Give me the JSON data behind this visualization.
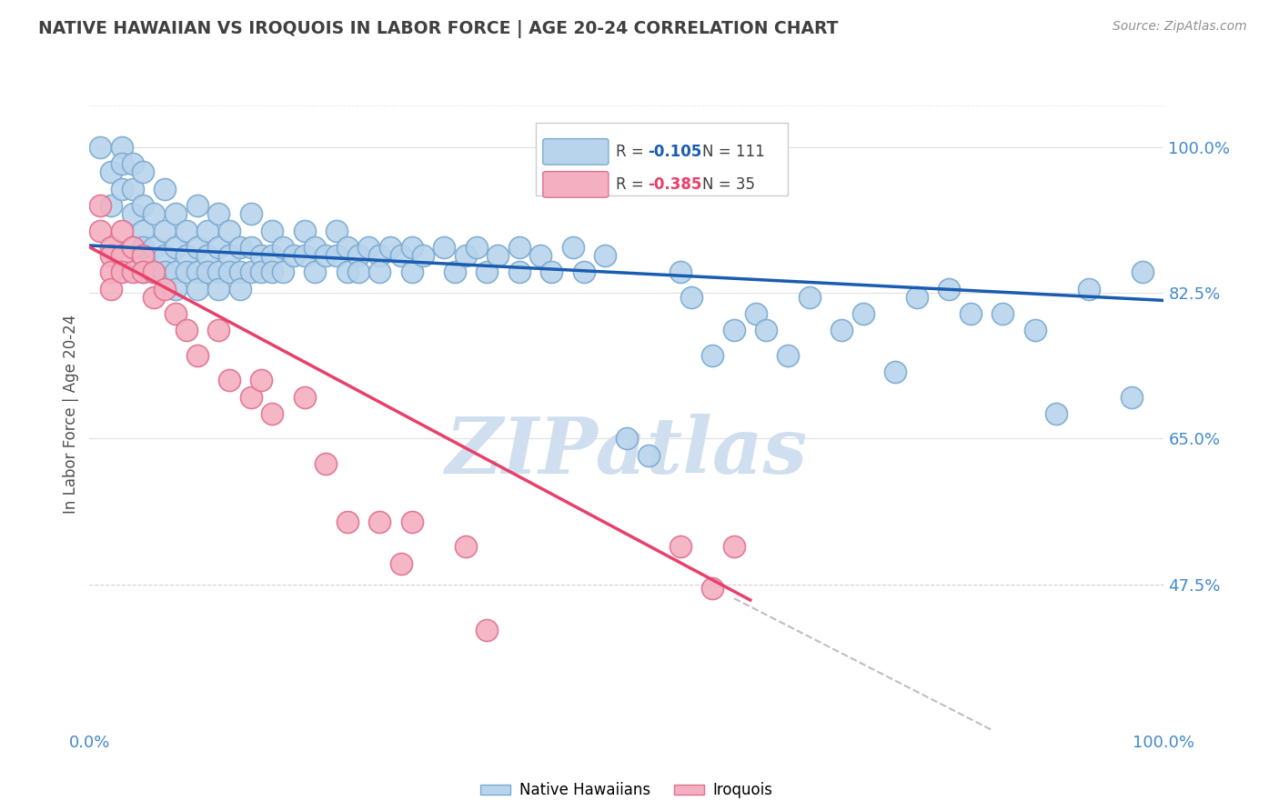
{
  "title": "NATIVE HAWAIIAN VS IROQUOIS IN LABOR FORCE | AGE 20-24 CORRELATION CHART",
  "source_text": "Source: ZipAtlas.com",
  "ylabel": "In Labor Force | Age 20-24",
  "xlim": [
    0.0,
    1.0
  ],
  "ylim": [
    0.3,
    1.06
  ],
  "ytick_labels": [
    "100.0%",
    "82.5%",
    "65.0%",
    "47.5%"
  ],
  "ytick_values": [
    1.0,
    0.825,
    0.65,
    0.475
  ],
  "ytick_dashed": [
    0.475
  ],
  "legend_r1": "-0.105",
  "legend_n1": "111",
  "legend_r2": "-0.385",
  "legend_n2": "35",
  "color_blue": "#b8d4ec",
  "color_pink": "#f4afc0",
  "edge_blue": "#7aaad0",
  "edge_pink": "#e07090",
  "line_blue": "#1a5cb0",
  "line_pink": "#e8406a",
  "line_dashed_color": "#c8b8c8",
  "watermark": "ZIPatlas",
  "watermark_color": "#d0dff0",
  "background_color": "#ffffff",
  "grid_color": "#e0e0e0",
  "grid_dashed_color": "#e0c8d0",
  "title_color": "#404040",
  "source_color": "#909090",
  "ylabel_color": "#505050",
  "ytick_color": "#4488cc",
  "xtick_color": "#4488cc",
  "blue_points": [
    [
      0.01,
      1.0
    ],
    [
      0.02,
      0.97
    ],
    [
      0.02,
      0.93
    ],
    [
      0.03,
      1.0
    ],
    [
      0.03,
      0.98
    ],
    [
      0.03,
      0.95
    ],
    [
      0.04,
      0.98
    ],
    [
      0.04,
      0.95
    ],
    [
      0.04,
      0.92
    ],
    [
      0.05,
      0.97
    ],
    [
      0.05,
      0.93
    ],
    [
      0.05,
      0.9
    ],
    [
      0.05,
      0.88
    ],
    [
      0.05,
      0.85
    ],
    [
      0.06,
      0.92
    ],
    [
      0.06,
      0.88
    ],
    [
      0.06,
      0.85
    ],
    [
      0.07,
      0.95
    ],
    [
      0.07,
      0.9
    ],
    [
      0.07,
      0.87
    ],
    [
      0.07,
      0.85
    ],
    [
      0.08,
      0.92
    ],
    [
      0.08,
      0.88
    ],
    [
      0.08,
      0.85
    ],
    [
      0.08,
      0.83
    ],
    [
      0.09,
      0.9
    ],
    [
      0.09,
      0.87
    ],
    [
      0.09,
      0.85
    ],
    [
      0.1,
      0.93
    ],
    [
      0.1,
      0.88
    ],
    [
      0.1,
      0.85
    ],
    [
      0.1,
      0.83
    ],
    [
      0.11,
      0.9
    ],
    [
      0.11,
      0.87
    ],
    [
      0.11,
      0.85
    ],
    [
      0.12,
      0.92
    ],
    [
      0.12,
      0.88
    ],
    [
      0.12,
      0.85
    ],
    [
      0.12,
      0.83
    ],
    [
      0.13,
      0.9
    ],
    [
      0.13,
      0.87
    ],
    [
      0.13,
      0.85
    ],
    [
      0.14,
      0.88
    ],
    [
      0.14,
      0.85
    ],
    [
      0.14,
      0.83
    ],
    [
      0.15,
      0.92
    ],
    [
      0.15,
      0.88
    ],
    [
      0.15,
      0.85
    ],
    [
      0.16,
      0.87
    ],
    [
      0.16,
      0.85
    ],
    [
      0.17,
      0.9
    ],
    [
      0.17,
      0.87
    ],
    [
      0.17,
      0.85
    ],
    [
      0.18,
      0.88
    ],
    [
      0.18,
      0.85
    ],
    [
      0.19,
      0.87
    ],
    [
      0.2,
      0.9
    ],
    [
      0.2,
      0.87
    ],
    [
      0.21,
      0.88
    ],
    [
      0.21,
      0.85
    ],
    [
      0.22,
      0.87
    ],
    [
      0.23,
      0.9
    ],
    [
      0.23,
      0.87
    ],
    [
      0.24,
      0.88
    ],
    [
      0.24,
      0.85
    ],
    [
      0.25,
      0.87
    ],
    [
      0.25,
      0.85
    ],
    [
      0.26,
      0.88
    ],
    [
      0.27,
      0.87
    ],
    [
      0.27,
      0.85
    ],
    [
      0.28,
      0.88
    ],
    [
      0.29,
      0.87
    ],
    [
      0.3,
      0.88
    ],
    [
      0.3,
      0.85
    ],
    [
      0.31,
      0.87
    ],
    [
      0.33,
      0.88
    ],
    [
      0.34,
      0.85
    ],
    [
      0.35,
      0.87
    ],
    [
      0.36,
      0.88
    ],
    [
      0.37,
      0.85
    ],
    [
      0.38,
      0.87
    ],
    [
      0.4,
      0.88
    ],
    [
      0.4,
      0.85
    ],
    [
      0.42,
      0.87
    ],
    [
      0.43,
      0.85
    ],
    [
      0.45,
      0.88
    ],
    [
      0.46,
      0.85
    ],
    [
      0.48,
      0.87
    ],
    [
      0.5,
      0.65
    ],
    [
      0.52,
      0.63
    ],
    [
      0.55,
      0.85
    ],
    [
      0.56,
      0.82
    ],
    [
      0.58,
      0.75
    ],
    [
      0.6,
      0.78
    ],
    [
      0.62,
      0.8
    ],
    [
      0.63,
      0.78
    ],
    [
      0.65,
      0.75
    ],
    [
      0.67,
      0.82
    ],
    [
      0.7,
      0.78
    ],
    [
      0.72,
      0.8
    ],
    [
      0.75,
      0.73
    ],
    [
      0.77,
      0.82
    ],
    [
      0.8,
      0.83
    ],
    [
      0.82,
      0.8
    ],
    [
      0.85,
      0.8
    ],
    [
      0.88,
      0.78
    ],
    [
      0.9,
      0.68
    ],
    [
      0.93,
      0.83
    ],
    [
      0.97,
      0.7
    ],
    [
      0.98,
      0.85
    ]
  ],
  "pink_points": [
    [
      0.01,
      0.93
    ],
    [
      0.01,
      0.9
    ],
    [
      0.02,
      0.88
    ],
    [
      0.02,
      0.87
    ],
    [
      0.02,
      0.85
    ],
    [
      0.02,
      0.83
    ],
    [
      0.03,
      0.9
    ],
    [
      0.03,
      0.87
    ],
    [
      0.03,
      0.85
    ],
    [
      0.04,
      0.88
    ],
    [
      0.04,
      0.85
    ],
    [
      0.05,
      0.87
    ],
    [
      0.05,
      0.85
    ],
    [
      0.06,
      0.85
    ],
    [
      0.06,
      0.82
    ],
    [
      0.07,
      0.83
    ],
    [
      0.08,
      0.8
    ],
    [
      0.09,
      0.78
    ],
    [
      0.1,
      0.75
    ],
    [
      0.12,
      0.78
    ],
    [
      0.13,
      0.72
    ],
    [
      0.15,
      0.7
    ],
    [
      0.16,
      0.72
    ],
    [
      0.17,
      0.68
    ],
    [
      0.2,
      0.7
    ],
    [
      0.22,
      0.62
    ],
    [
      0.24,
      0.55
    ],
    [
      0.27,
      0.55
    ],
    [
      0.29,
      0.5
    ],
    [
      0.3,
      0.55
    ],
    [
      0.35,
      0.52
    ],
    [
      0.37,
      0.42
    ],
    [
      0.55,
      0.52
    ],
    [
      0.58,
      0.47
    ],
    [
      0.6,
      0.52
    ]
  ],
  "blue_line_x": [
    0.0,
    1.0
  ],
  "blue_line_y": [
    0.882,
    0.816
  ],
  "pink_line_x": [
    0.0,
    0.615
  ],
  "pink_line_y": [
    0.88,
    0.456
  ],
  "dashed_line_x": [
    0.6,
    1.04
  ],
  "dashed_line_y": [
    0.458,
    0.168
  ]
}
